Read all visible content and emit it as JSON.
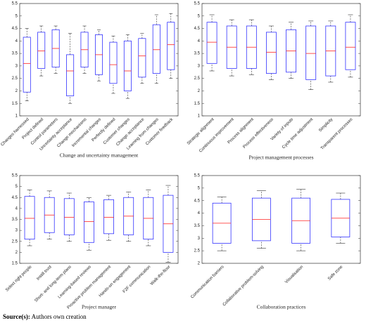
{
  "chart_data": [
    {
      "type": "box",
      "title": "Change and uncertainty management",
      "categories": [
        "Changes harnessed",
        "Project defined",
        "Control parameters",
        "Uncertainty acceptance",
        "Change mechanisms",
        "Incremental changes",
        "Perfectly defined",
        "Customer changes",
        "Change acceptance",
        "Learning from changes",
        "Customer feedback"
      ],
      "min": [
        1.6,
        2.6,
        2.7,
        1.5,
        2.7,
        2.4,
        1.9,
        1.7,
        2.3,
        2.3,
        2.5
      ],
      "q1": [
        1.95,
        2.9,
        2.95,
        1.8,
        2.95,
        2.65,
        2.3,
        2.0,
        2.55,
        2.7,
        2.85
      ],
      "median": [
        3.1,
        3.6,
        3.7,
        2.8,
        3.65,
        3.45,
        3.05,
        2.8,
        3.4,
        3.65,
        3.85
      ],
      "q3": [
        4.15,
        4.35,
        4.45,
        3.45,
        4.35,
        4.25,
        3.95,
        4.0,
        4.1,
        4.65,
        4.75
      ],
      "max": [
        4.5,
        4.6,
        4.6,
        4.3,
        4.6,
        4.45,
        4.2,
        4.25,
        4.3,
        5.05,
        5.1
      ],
      "ylim": [
        1,
        5.5
      ],
      "yticks": [
        1,
        1.5,
        2,
        2.5,
        3,
        3.5,
        4,
        4.5,
        5,
        5.5
      ],
      "box_color": "#3333ff",
      "median_color": "#ff2222",
      "whisker_color": "#333333"
    },
    {
      "type": "box",
      "title": "Project management processes",
      "categories": [
        "Strategic alignment",
        "Continuous improvement",
        "Process alignment",
        "Process effectiveness",
        "Variety of inputs",
        "Cycle time adjustment",
        "Simplicity",
        "Transparent processes"
      ],
      "min": [
        2.8,
        2.6,
        2.65,
        2.45,
        2.5,
        2.05,
        2.35,
        2.55
      ],
      "q1": [
        3.1,
        2.9,
        2.9,
        2.7,
        2.75,
        2.45,
        2.6,
        2.85
      ],
      "median": [
        3.95,
        3.75,
        3.75,
        3.55,
        3.6,
        3.5,
        3.6,
        3.75
      ],
      "q3": [
        4.75,
        4.6,
        4.6,
        4.35,
        4.45,
        4.6,
        4.6,
        4.75
      ],
      "max": [
        5.05,
        4.85,
        4.85,
        4.6,
        4.75,
        4.8,
        4.8,
        5.05
      ],
      "ylim": [
        1,
        5.5
      ],
      "yticks": [
        1,
        1.5,
        2,
        2.5,
        3,
        3.5,
        4,
        4.5,
        5,
        5.5
      ],
      "box_color": "#3333ff",
      "median_color": "#ff2222",
      "whisker_color": "#333333"
    },
    {
      "type": "box",
      "title": "Project manager",
      "categories": [
        "Select right people",
        "Instill trust",
        "Short- and long-term plans",
        "Learning-based reviews",
        "Proactive problem management",
        "Hands-on engagement",
        "F2F communication",
        "Walk-the-floor"
      ],
      "min": [
        2.3,
        2.6,
        2.5,
        2.1,
        2.55,
        2.5,
        2.3,
        1.55
      ],
      "q1": [
        2.6,
        2.9,
        2.8,
        2.45,
        2.85,
        2.8,
        2.6,
        2.0
      ],
      "median": [
        3.55,
        3.7,
        3.6,
        3.4,
        3.6,
        3.65,
        3.55,
        3.3
      ],
      "q3": [
        4.55,
        4.5,
        4.45,
        4.3,
        4.4,
        4.5,
        4.5,
        4.6
      ],
      "max": [
        4.85,
        4.8,
        4.7,
        4.5,
        4.6,
        4.75,
        4.85,
        5.05
      ],
      "ylim": [
        1.5,
        5.5
      ],
      "yticks": [
        1.5,
        2,
        2.5,
        3,
        3.5,
        4,
        4.5,
        5,
        5.5
      ],
      "box_color": "#3333ff",
      "median_color": "#ff2222",
      "whisker_color": "#333333"
    },
    {
      "type": "box",
      "title": "Collaboration practices",
      "categories": [
        "Communication barriers",
        "Collaborative problem-solving",
        "Visualisation",
        "Safe zone"
      ],
      "min": [
        2.5,
        2.6,
        2.5,
        2.8
      ],
      "q1": [
        2.8,
        2.9,
        2.8,
        3.05
      ],
      "median": [
        3.6,
        3.75,
        3.7,
        3.8
      ],
      "q3": [
        4.4,
        4.6,
        4.6,
        4.55
      ],
      "max": [
        4.65,
        4.9,
        4.95,
        4.8
      ],
      "ylim": [
        2,
        5.5
      ],
      "yticks": [
        2,
        2.5,
        3,
        3.5,
        4,
        4.5,
        5,
        5.5
      ],
      "box_color": "#3333ff",
      "median_color": "#ff2222",
      "whisker_color": "#333333"
    }
  ],
  "source": {
    "label": "Source(s):",
    "text": "Authors own creation"
  }
}
